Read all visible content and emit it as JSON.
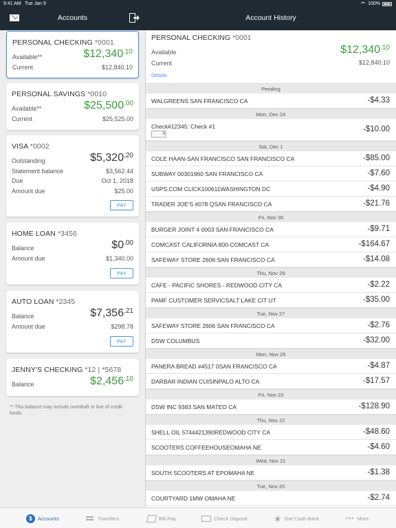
{
  "status_bar": {
    "time": "9:41 AM",
    "date": "Tue Jan 9",
    "battery": "100%"
  },
  "left_header": {
    "title": "Accounts"
  },
  "right_header": {
    "title": "Account History"
  },
  "accounts": [
    {
      "name": "PERSONAL CHECKING",
      "number": "*0001",
      "available_label": "Available**",
      "available_whole": "$12,340",
      "available_cents": "10",
      "current_label": "Current",
      "current_value": "$12,840.10"
    },
    {
      "name": "PERSONAL SAVINGS",
      "number": "*0010",
      "available_label": "Available**",
      "available_whole": "$25,500",
      "available_cents": "00",
      "current_label": "Current",
      "current_value": "$25,525.00"
    },
    {
      "name": "VISA",
      "number": "*0002",
      "outstanding_label": "Outstanding",
      "outstanding_whole": "$5,320",
      "outstanding_cents": "20",
      "statement_label": "Statement balance",
      "statement_value": "$3,562.44",
      "due_label": "Due",
      "due_value": "Oct 1, 2018",
      "amount_due_label": "Amount due",
      "amount_due_value": "$25.00",
      "pay_label": "PAY"
    },
    {
      "name": "HOME LOAN",
      "number": "*3456",
      "balance_label": "Balance",
      "balance_whole": "$0",
      "balance_cents": "00",
      "amount_due_label": "Amount due",
      "amount_due_value": "$1,340.00",
      "pay_label": "PAY"
    },
    {
      "name": "AUTO LOAN",
      "number": "*2345",
      "balance_label": "Balance",
      "balance_whole": "$7,356",
      "balance_cents": "21",
      "amount_due_label": "Amount due",
      "amount_due_value": "$298.78",
      "pay_label": "PAY"
    },
    {
      "name": "JENNY'S CHECKING",
      "number": "*12 | *5678",
      "balance_label": "Balance",
      "balance_whole": "$2,456",
      "balance_cents": "10"
    }
  ],
  "footnote": "** This balance may include overdraft or line of credit funds.",
  "detail": {
    "name": "PERSONAL CHECKING",
    "number": "*0001",
    "available_label": "Available",
    "available_whole": "$12,340",
    "available_cents": "10",
    "current_label": "Current",
    "current_value": "$12,840.10",
    "details_link": "Details"
  },
  "transactions": [
    {
      "section": "Pending"
    },
    {
      "desc": "WALGREENS SAN FRANCISCO CA",
      "amount": "-$4.33"
    },
    {
      "section": "Mon, Dec 24"
    },
    {
      "desc": "Check#12345: Check #1",
      "amount": "-$10.00",
      "check_icon": "$"
    },
    {
      "section": "Sat, Dec 1"
    },
    {
      "desc": "COLE HAAN-SAN FRANCISCO SAN FRANCISCO CA",
      "amount": "-$85.00"
    },
    {
      "desc": "SUBWAY 00301960 SAN FRANCISCO CA",
      "amount": "-$7.60"
    },
    {
      "desc": "USPS.COM CLICK100611WASHINGTON DC",
      "amount": "-$4.90"
    },
    {
      "desc": "TRADER JOE'S #078 QSAN FRANCISCO CA",
      "amount": "-$21.76"
    },
    {
      "section": "Fri, Nov 30"
    },
    {
      "desc": "BURGER JOINT 4 0003 SAN FRANCISCO CA",
      "amount": "-$9.71"
    },
    {
      "desc": "COMCAST CALIFORNIA 800-COMCAST CA",
      "amount": "-$164.67"
    },
    {
      "desc": "SAFEWAY STORE 2606 SAN FRANCISCO CA",
      "amount": "-$14.08"
    },
    {
      "section": "Thu, Nov 29"
    },
    {
      "desc": "CAFE - PACIFIC SHORES - REDWOOD CITY CA",
      "amount": "-$2.22"
    },
    {
      "desc": "PAMF CUSTOMER SERVICSALT LAKE CIT UT",
      "amount": "-$35.00"
    },
    {
      "section": "Tue, Nov 27"
    },
    {
      "desc": "SAFEWAY STORE 2606 SAN FRANCISCO CA",
      "amount": "-$2.76"
    },
    {
      "desc": "DSW COLUMBUS",
      "amount": "-$32.00"
    },
    {
      "section": "Mon, Nov 26"
    },
    {
      "desc": "PANERA BREAD #4517 0SAN FRANCISCO CA",
      "amount": "-$4.87"
    },
    {
      "desc": "DARBAR INDIAN CUISINPALO ALTO CA",
      "amount": "-$17.57"
    },
    {
      "section": "Fri, Nov 23"
    },
    {
      "desc": "DSW INC 9383 SAN MATEO CA",
      "amount": "-$128.90"
    },
    {
      "section": "Thu, Nov 22"
    },
    {
      "desc": "SHELL OIL 5744421390REDWOOD CITY CA",
      "amount": "-$48.60"
    },
    {
      "desc": "SCOOTERS COFFEEHOUSEOMAHA NE",
      "amount": "-$4.60"
    },
    {
      "section": "Wed, Nov 21"
    },
    {
      "desc": "SOUTH SCOOTERS AT EPOMAHA NE",
      "amount": "-$1.38"
    },
    {
      "section": "Tue, Nov 20"
    },
    {
      "desc": "COURTYARD 1MW OMAHA NE",
      "amount": "-$2.74"
    }
  ],
  "tabs": [
    {
      "label": "Accounts",
      "icon": "dollar-icon",
      "active": true
    },
    {
      "label": "Transfers",
      "icon": "transfer-icon"
    },
    {
      "label": "Bill Pay",
      "icon": "bill-pay-icon"
    },
    {
      "label": "Check Deposit",
      "icon": "check-deposit-icon"
    },
    {
      "label": "Get Cash Back",
      "icon": "star-icon"
    },
    {
      "label": "More",
      "icon": "more-icon"
    }
  ],
  "colors": {
    "header_bg": "#1f2a33",
    "accent": "#4a90d9",
    "positive": "#3a9c3a",
    "active_tab": "#2f6fb8"
  }
}
